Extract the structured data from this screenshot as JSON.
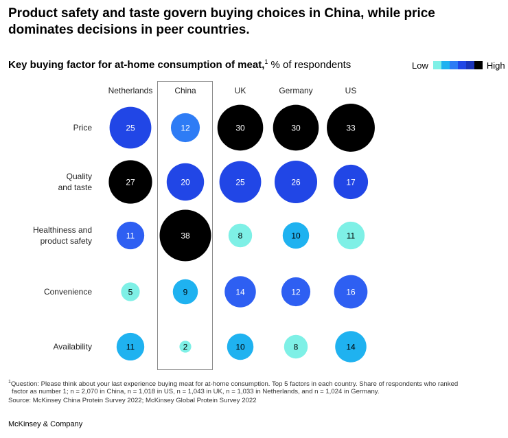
{
  "headline": "Product safety and taste govern buying choices in China, while price dominates decisions in peer countries.",
  "subtitle": {
    "strong": "Key buying factor for at-home consumption of meat,",
    "sup": "1",
    "rest": " % of respondents"
  },
  "legend": {
    "low": "Low",
    "high": "High",
    "colors": [
      "#7ef0e6",
      "#1fb2f0",
      "#2e7cf5",
      "#2146e6",
      "#1a33b8",
      "#000000"
    ]
  },
  "footnote": {
    "sup": "1",
    "line1": "Question: Please think about your last experience buying meat for at-home consumption. Top 5 factors in each country. Share of respondents who ranked",
    "line2": "factor as number 1; n = 2,070 in China, n = 1,018 in US, n = 1,043 in UK, n = 1,033 in Netherlands, and n = 1,024 in Germany."
  },
  "source": "Source:  McKinsey China Protein Survey 2022; McKinsey Global Protein Survey 2022",
  "brand": "McKinsey & Company",
  "chart_data": {
    "type": "bubble-matrix",
    "highlighted_column": "China",
    "columns": [
      "Netherlands",
      "China",
      "UK",
      "Germany",
      "US"
    ],
    "rows": [
      {
        "label": [
          "Price"
        ],
        "values": [
          25,
          12,
          30,
          30,
          33
        ]
      },
      {
        "label": [
          "Quality",
          "and taste"
        ],
        "values": [
          27,
          20,
          25,
          26,
          17
        ]
      },
      {
        "label": [
          "Healthiness and",
          "product safety"
        ],
        "values": [
          11,
          38,
          8,
          10,
          11
        ]
      },
      {
        "label": [
          "Convenience"
        ],
        "values": [
          5,
          9,
          14,
          12,
          16
        ]
      },
      {
        "label": [
          "Availability"
        ],
        "values": [
          11,
          2,
          10,
          8,
          14
        ]
      }
    ],
    "cell_colors": [
      [
        "#2146e6",
        "#2e7cf5",
        "#000000",
        "#000000",
        "#000000"
      ],
      [
        "#000000",
        "#2146e6",
        "#2146e6",
        "#2146e6",
        "#2146e6"
      ],
      [
        "#2e5ff2",
        "#000000",
        "#7ef0e6",
        "#1fb2f0",
        "#7ef0e6"
      ],
      [
        "#7ef0e6",
        "#1fb2f0",
        "#2e5ff2",
        "#2e5ff2",
        "#2e5ff2"
      ],
      [
        "#1fb2f0",
        "#7ef0e6",
        "#1fb2f0",
        "#7ef0e6",
        "#1fb2f0"
      ]
    ]
  }
}
